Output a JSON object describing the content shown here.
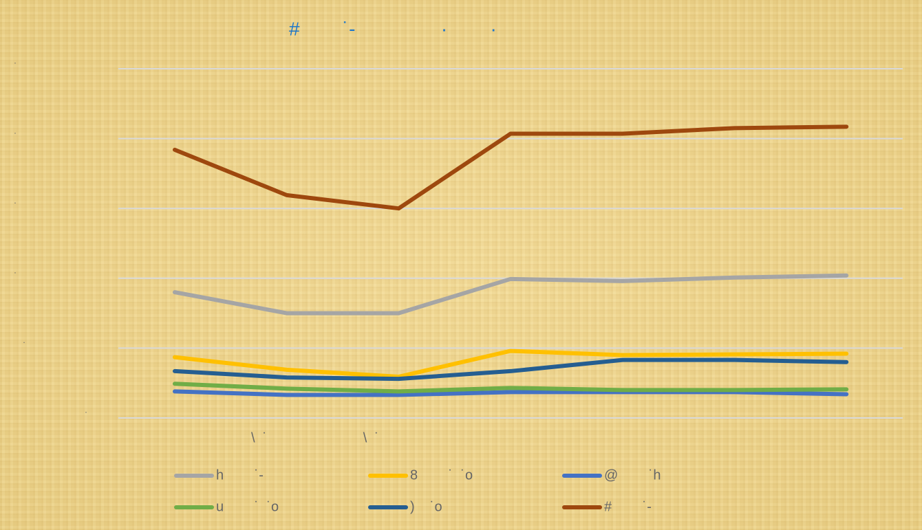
{
  "chart_data": {
    "type": "line",
    "title": "#        ˙-                ·        ·",
    "categories": [
      null,
      "\\  ˙",
      "\\  ˙",
      null,
      null,
      null,
      null
    ],
    "ylim": [
      0,
      500
    ],
    "yticks": [
      {
        "value": 0,
        "label": "·"
      },
      {
        "value": 100,
        "label": "·"
      },
      {
        "value": 200,
        "label": "·"
      },
      {
        "value": 300,
        "label": "·"
      },
      {
        "value": 400,
        "label": "·"
      },
      {
        "value": 500,
        "label": "·"
      }
    ],
    "grid": true,
    "legend": "bottom",
    "series": [
      {
        "name": "h        ˙-",
        "color": "#a5a5a5",
        "values": [
          180,
          150,
          150,
          199,
          196,
          201,
          204
        ]
      },
      {
        "name": "8        ˙  ˙o",
        "color": "#ffc000",
        "values": [
          87,
          69,
          59,
          96,
          90,
          91,
          92
        ]
      },
      {
        "name": "@        ˙h",
        "color": "#4472c4",
        "values": [
          38,
          33,
          33,
          37,
          37,
          37,
          34
        ]
      },
      {
        "name": "u        ˙  ˙o",
        "color": "#70ad47",
        "values": [
          49,
          42,
          38,
          43,
          40,
          40,
          41
        ]
      },
      {
        "name": ")    ˙o",
        "color": "#255e91",
        "values": [
          67,
          58,
          56,
          67,
          83,
          83,
          80
        ]
      },
      {
        "name": "#        ˙-",
        "color": "#9e480e",
        "values": [
          384,
          319,
          300,
          407,
          407,
          415,
          417
        ]
      }
    ]
  }
}
